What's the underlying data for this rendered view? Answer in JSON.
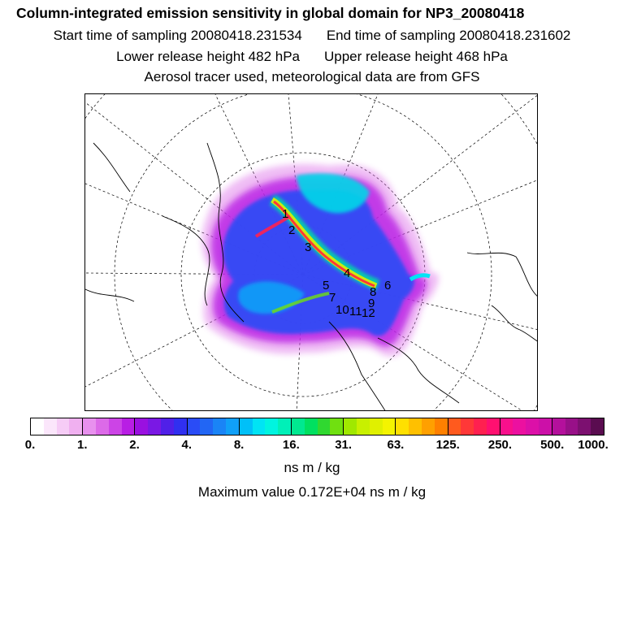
{
  "header": {
    "title": "Column-integrated emission sensitivity in global domain for NP3_20080418",
    "start_label": "Start time of sampling 20080418.231534",
    "end_label": "End time of sampling 20080418.231602",
    "lower_label": "Lower release height  482 hPa",
    "upper_label": "Upper release height  468 hPa",
    "tracer_label": "Aerosol tracer used, meteorological data are from GFS"
  },
  "map": {
    "markers": [
      "1",
      "2",
      "3",
      "4",
      "5",
      "6",
      "7",
      "8",
      "9",
      "10",
      "11",
      "12"
    ]
  },
  "colorbar": {
    "ticks": [
      "0.",
      "1.",
      "2.",
      "4.",
      "8.",
      "16.",
      "31.",
      "63.",
      "125.",
      "250.",
      "500.",
      "1000."
    ],
    "colors": [
      "#ffffff",
      "#fbe6fb",
      "#f6ccf6",
      "#f0b0f0",
      "#e890ee",
      "#dc6ae8",
      "#cc44e6",
      "#b81ee4",
      "#9a10e0",
      "#7a18e4",
      "#5020e8",
      "#3030f0",
      "#2a4cf6",
      "#2266f4",
      "#1a84f6",
      "#10a0f8",
      "#00c0f8",
      "#00e4f4",
      "#00f4e0",
      "#00f0b8",
      "#00e890",
      "#00e060",
      "#30d830",
      "#70e010",
      "#a0e800",
      "#c8f000",
      "#e0f000",
      "#f4f400",
      "#ffe000",
      "#ffc000",
      "#ffa000",
      "#ff8000",
      "#ff5a1e",
      "#ff3838",
      "#ff2050",
      "#ff1070",
      "#f8108c",
      "#ec10a0",
      "#dc10a8",
      "#cc10a8",
      "#b4109c",
      "#981088",
      "#7c1070",
      "#5a0c50"
    ],
    "unit": "ns m / kg",
    "max_label": "Maximum value  0.172E+04 ns m / kg"
  }
}
